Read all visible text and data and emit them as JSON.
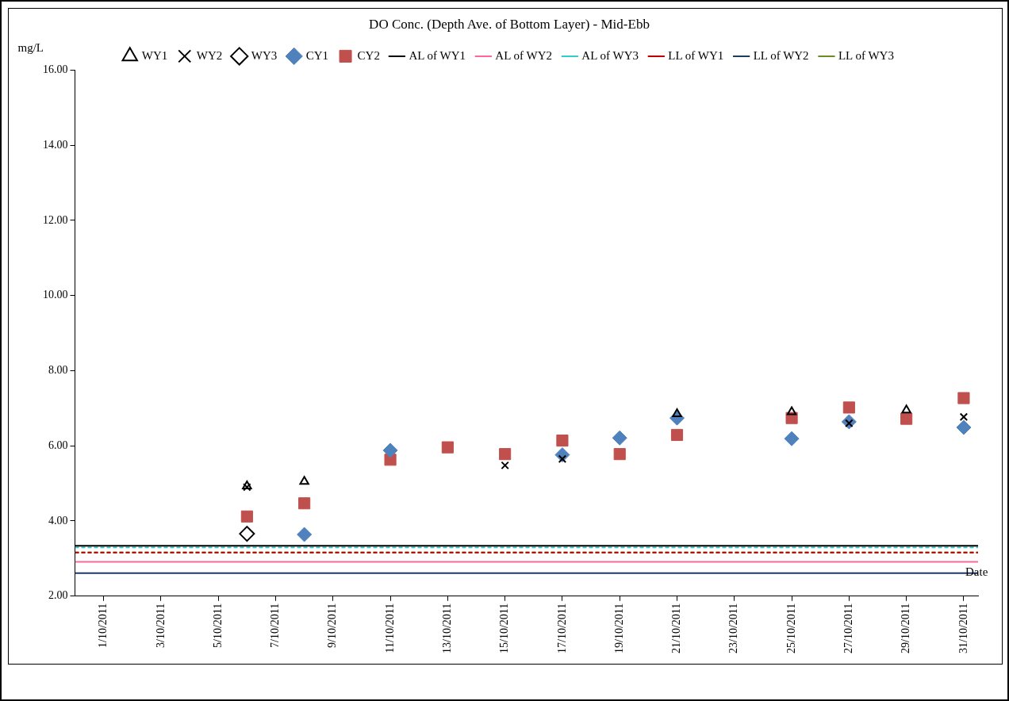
{
  "chart_data": {
    "type": "scatter",
    "title": "DO Conc. (Depth Ave. of Bottom Layer) - Mid-Ebb",
    "ylabel": "mg/L",
    "xlabel": "Date",
    "x": [
      "2011-10-06",
      "2011-10-08",
      "2011-10-11",
      "2011-10-13",
      "2011-10-15",
      "2011-10-17",
      "2011-10-19",
      "2011-10-21",
      "2011-10-25",
      "2011-10-27",
      "2011-10-29",
      "2011-10-31"
    ],
    "series": [
      {
        "name": "WY1",
        "color": "#000000",
        "marker": "triangle",
        "values": [
          4.93,
          5.05,
          null,
          null,
          null,
          null,
          null,
          6.85,
          6.9,
          null,
          6.95,
          null
        ]
      },
      {
        "name": "WY2",
        "color": "#000000",
        "marker": "cross",
        "values": [
          4.9,
          null,
          null,
          null,
          5.48,
          5.65,
          null,
          null,
          null,
          6.6,
          null,
          6.77
        ]
      },
      {
        "name": "WY3",
        "color": "#000000",
        "marker": "diamond",
        "values": [
          3.66,
          null,
          null,
          null,
          null,
          null,
          null,
          null,
          null,
          null,
          null,
          null
        ]
      },
      {
        "name": "CY1",
        "color": "#4f81bd",
        "marker": "diamond",
        "values": [
          null,
          3.64,
          5.88,
          null,
          null,
          5.76,
          6.21,
          6.74,
          6.19,
          6.64,
          null,
          6.49
        ]
      },
      {
        "name": "CY2",
        "color": "#c0504d",
        "marker": "square",
        "values": [
          4.12,
          4.47,
          5.63,
          5.96,
          5.78,
          6.14,
          5.78,
          6.29,
          6.74,
          7.02,
          6.72,
          7.27
        ]
      }
    ],
    "ref_lines": [
      {
        "axis": "y",
        "value": 3.34,
        "label": "AL of WY1",
        "color": "#000000",
        "line_style": "solid"
      },
      {
        "axis": "y",
        "value": 2.91,
        "label": "AL of WY2",
        "color": "#ff6699",
        "line_style": "solid"
      },
      {
        "axis": "y",
        "value": 3.3,
        "label": "AL of WY3",
        "color": "#33cccc",
        "line_style": "dashed"
      },
      {
        "axis": "y",
        "value": 3.16,
        "label": "LL of WY1",
        "color": "#c00000",
        "line_style": "dashed"
      },
      {
        "axis": "y",
        "value": 2.61,
        "label": "LL of WY2",
        "color": "#1f3864",
        "line_style": "solid"
      },
      {
        "axis": "y",
        "value": 3.16,
        "label": "LL of WY3",
        "color": "#6b8e23",
        "line_style": "dashed"
      }
    ],
    "xlim": [
      "2011-09-30",
      "2011-10-31T12:00"
    ],
    "xticks": [
      {
        "value": "2011-10-01",
        "label": "1/10/2011"
      },
      {
        "value": "2011-10-03",
        "label": "3/10/2011"
      },
      {
        "value": "2011-10-05",
        "label": "5/10/2011"
      },
      {
        "value": "2011-10-07",
        "label": "7/10/2011"
      },
      {
        "value": "2011-10-09",
        "label": "9/10/2011"
      },
      {
        "value": "2011-10-11",
        "label": "11/10/2011"
      },
      {
        "value": "2011-10-13",
        "label": "13/10/2011"
      },
      {
        "value": "2011-10-15",
        "label": "15/10/2011"
      },
      {
        "value": "2011-10-17",
        "label": "17/10/2011"
      },
      {
        "value": "2011-10-19",
        "label": "19/10/2011"
      },
      {
        "value": "2011-10-21",
        "label": "21/10/2011"
      },
      {
        "value": "2011-10-23",
        "label": "23/10/2011"
      },
      {
        "value": "2011-10-25",
        "label": "25/10/2011"
      },
      {
        "value": "2011-10-27",
        "label": "27/10/2011"
      },
      {
        "value": "2011-10-29",
        "label": "29/10/2011"
      },
      {
        "value": "2011-10-31",
        "label": "31/10/2011"
      }
    ],
    "ylim": [
      2,
      16
    ],
    "yticks": [
      {
        "value": 2,
        "label": "2.00"
      },
      {
        "value": 4,
        "label": "4.00"
      },
      {
        "value": 6,
        "label": "6.00"
      },
      {
        "value": 8,
        "label": "8.00"
      },
      {
        "value": 10,
        "label": "10.00"
      },
      {
        "value": 12,
        "label": "12.00"
      },
      {
        "value": 14,
        "label": "14.00"
      },
      {
        "value": 16,
        "label": "16.00"
      }
    ],
    "grid": false,
    "legend": "top"
  }
}
